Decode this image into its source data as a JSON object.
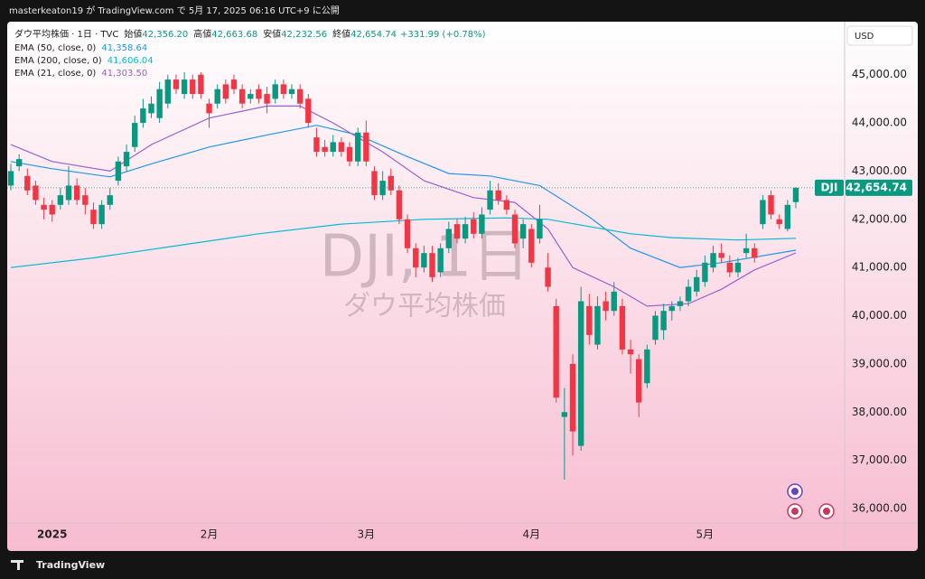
{
  "header": {
    "publisher": "masterkeaton19 が TradingView.com で 5月 17, 2025 06:16 UTC+9 に公開",
    "symbol": "ダウ平均株価 · 1日 · TVC",
    "ohlc": [
      {
        "label": "始値",
        "value": "42,356.20"
      },
      {
        "label": "高値",
        "value": "42,663.68"
      },
      {
        "label": "安値",
        "value": "42,232.56"
      },
      {
        "label": "終値",
        "value": "42,654.74"
      }
    ],
    "change": "+331.99 (+0.78%)"
  },
  "currency": "USD",
  "price_tag": {
    "symbol": "DJI",
    "value": "42,654.74"
  },
  "watermark": {
    "title": "DJI, 1日",
    "subtitle": "ダウ平均株価"
  },
  "footer": "TradingView",
  "chart_data": {
    "type": "candlestick",
    "categories": [
      null,
      null,
      null,
      null,
      null,
      "2025",
      null,
      null,
      null,
      null,
      null,
      null,
      null,
      null,
      null,
      null,
      null,
      null,
      null,
      null,
      null,
      null,
      null,
      null,
      "2月",
      null,
      null,
      null,
      null,
      null,
      null,
      null,
      null,
      null,
      null,
      null,
      null,
      null,
      null,
      null,
      null,
      null,
      null,
      "3月",
      null,
      null,
      null,
      null,
      null,
      null,
      null,
      null,
      null,
      null,
      null,
      null,
      null,
      null,
      null,
      null,
      null,
      null,
      null,
      "4月",
      null,
      null,
      null,
      null,
      null,
      null,
      null,
      null,
      null,
      null,
      null,
      null,
      null,
      null,
      null,
      null,
      null,
      null,
      null,
      null,
      "5月",
      null,
      null,
      null,
      null,
      null,
      null,
      null,
      null,
      null,
      null,
      null
    ],
    "open": [
      42700,
      43100,
      42900,
      42700,
      42300,
      42300,
      42300,
      42400,
      42700,
      42500,
      42200,
      41900,
      42300,
      42800,
      43100,
      43500,
      44000,
      44200,
      44100,
      44400,
      44900,
      44600,
      44900,
      45000,
      44400,
      44400,
      44800,
      44900,
      44700,
      44500,
      44700,
      44600,
      44500,
      44800,
      44600,
      44700,
      44500,
      43700,
      43500,
      43400,
      43600,
      43500,
      43200,
      43800,
      43000,
      42500,
      42900,
      42600,
      42000,
      41400,
      41000,
      41300,
      40900,
      41400,
      41900,
      41600,
      42000,
      41700,
      42200,
      42600,
      42400,
      42100,
      41600,
      41800,
      41600,
      41000,
      40200,
      37900,
      39000,
      37300,
      40200,
      39400,
      40300,
      40100,
      40200,
      39300,
      39100,
      38600,
      39500,
      39700,
      40100,
      40200,
      40300,
      40500,
      40700,
      41000,
      41300,
      41100,
      40900,
      41300,
      41400,
      41900,
      42500,
      42000,
      41800,
      42356.2
    ],
    "high": [
      43150,
      43350,
      43050,
      42800,
      42450,
      42400,
      42650,
      43100,
      42850,
      42650,
      42350,
      42400,
      42650,
      43300,
      43550,
      44150,
      44500,
      44550,
      44850,
      45000,
      45000,
      45050,
      45000,
      45050,
      44500,
      44800,
      44900,
      45000,
      44800,
      44700,
      44800,
      44750,
      44900,
      44900,
      44800,
      44800,
      44600,
      43900,
      43650,
      43750,
      43700,
      43600,
      43900,
      44050,
      43100,
      43000,
      43050,
      42700,
      42100,
      41500,
      41450,
      41450,
      41500,
      41950,
      42000,
      42050,
      42150,
      42250,
      42800,
      42750,
      42500,
      42200,
      42000,
      41900,
      42300,
      41300,
      40350,
      38500,
      39200,
      40600,
      40450,
      40400,
      40500,
      40700,
      40350,
      39500,
      39200,
      39400,
      40100,
      40250,
      40300,
      40400,
      40750,
      40950,
      41250,
      41450,
      41500,
      41250,
      41200,
      41700,
      41500,
      42500,
      42600,
      42100,
      42400,
      42663.68
    ],
    "low": [
      42600,
      43000,
      42500,
      42300,
      42000,
      41950,
      42200,
      42300,
      42300,
      42100,
      41800,
      41800,
      42200,
      42700,
      43000,
      43400,
      43900,
      44100,
      44000,
      44300,
      44600,
      44500,
      44500,
      44500,
      43900,
      44300,
      44400,
      44600,
      44300,
      44400,
      44400,
      44200,
      44400,
      44500,
      44500,
      44300,
      43900,
      43300,
      43300,
      43300,
      43300,
      43100,
      43100,
      43100,
      42400,
      42400,
      42500,
      41900,
      41300,
      40800,
      40900,
      40700,
      40800,
      41300,
      41500,
      41500,
      41600,
      41600,
      42100,
      42300,
      42100,
      41400,
      41400,
      41000,
      41500,
      40500,
      38200,
      36600,
      37100,
      37200,
      39400,
      39300,
      39900,
      40000,
      39200,
      38800,
      37900,
      38500,
      39400,
      39500,
      39900,
      40100,
      40200,
      40400,
      40600,
      40900,
      41100,
      40800,
      40800,
      41200,
      41100,
      41800,
      42000,
      41800,
      41750,
      42232.56
    ],
    "close": [
      43000,
      43250,
      42600,
      42400,
      42200,
      42100,
      42500,
      42700,
      42400,
      42300,
      41900,
      42300,
      42500,
      43200,
      43400,
      44000,
      44300,
      44400,
      44700,
      44900,
      44700,
      44900,
      44600,
      44600,
      44200,
      44700,
      44500,
      44700,
      44400,
      44600,
      44500,
      44400,
      44800,
      44600,
      44700,
      44400,
      44000,
      43400,
      43400,
      43600,
      43400,
      43200,
      43800,
      43200,
      42500,
      42800,
      42600,
      42000,
      41400,
      41000,
      41300,
      40800,
      41400,
      41800,
      41600,
      41900,
      41700,
      42100,
      42600,
      42400,
      42200,
      41500,
      41900,
      41100,
      42000,
      40600,
      38300,
      38000,
      37600,
      40300,
      39600,
      40200,
      40100,
      40500,
      39300,
      39200,
      38200,
      39300,
      40000,
      40100,
      40200,
      40300,
      40600,
      40800,
      41100,
      41300,
      41200,
      40900,
      41100,
      41400,
      41200,
      42400,
      42100,
      41900,
      42300,
      42654.74
    ],
    "up_color": "#089981",
    "down_color": "#f23645",
    "series": [
      {
        "name": "EMA (50, close, 0)",
        "color": "#2196f3",
        "value_label": "41,358.64",
        "x": [
          0,
          5,
          12,
          17,
          24,
          31,
          37,
          42,
          48,
          53,
          58,
          64,
          70,
          75,
          81,
          86,
          95
        ],
        "values": [
          43200,
          43050,
          42880,
          43150,
          43500,
          43750,
          43950,
          43750,
          43300,
          42950,
          42900,
          42700,
          42050,
          41400,
          41000,
          41100,
          41358.64
        ]
      },
      {
        "name": "EMA (200, close, 0)",
        "color": "#00bcd4",
        "value_label": "41,606.04",
        "x": [
          0,
          10,
          20,
          30,
          40,
          50,
          60,
          65,
          70,
          75,
          80,
          88,
          95
        ],
        "values": [
          41000,
          41200,
          41450,
          41700,
          41900,
          42000,
          42030,
          42000,
          41850,
          41700,
          41620,
          41570,
          41606.04
        ]
      },
      {
        "name": "EMA (21, close, 0)",
        "color": "#9c5fd0",
        "value_label": "41,303.50",
        "x": [
          0,
          5,
          12,
          17,
          24,
          31,
          35,
          39,
          45,
          50,
          56,
          61,
          65,
          68,
          73,
          77,
          82,
          86,
          90,
          95
        ],
        "values": [
          43550,
          43200,
          43000,
          43550,
          44100,
          44350,
          44350,
          44000,
          43400,
          42800,
          42450,
          42350,
          41800,
          41000,
          40600,
          40200,
          40250,
          40550,
          40950,
          41303.5
        ]
      }
    ],
    "ylim": [
      35700,
      46100
    ],
    "yticks": [
      {
        "value": 36000,
        "label": "36,000.00"
      },
      {
        "value": 37000,
        "label": "37,000.00"
      },
      {
        "value": 38000,
        "label": "38,000.00"
      },
      {
        "value": 39000,
        "label": "39,000.00"
      },
      {
        "value": 40000,
        "label": "40,000.00"
      },
      {
        "value": 41000,
        "label": "41,000.00"
      },
      {
        "value": 42000,
        "label": "42,000.00"
      },
      {
        "value": 43000,
        "label": "43,000.00"
      },
      {
        "value": 44000,
        "label": "44,000.00"
      },
      {
        "value": 45000,
        "label": "45,000.00"
      }
    ],
    "grid": false
  }
}
